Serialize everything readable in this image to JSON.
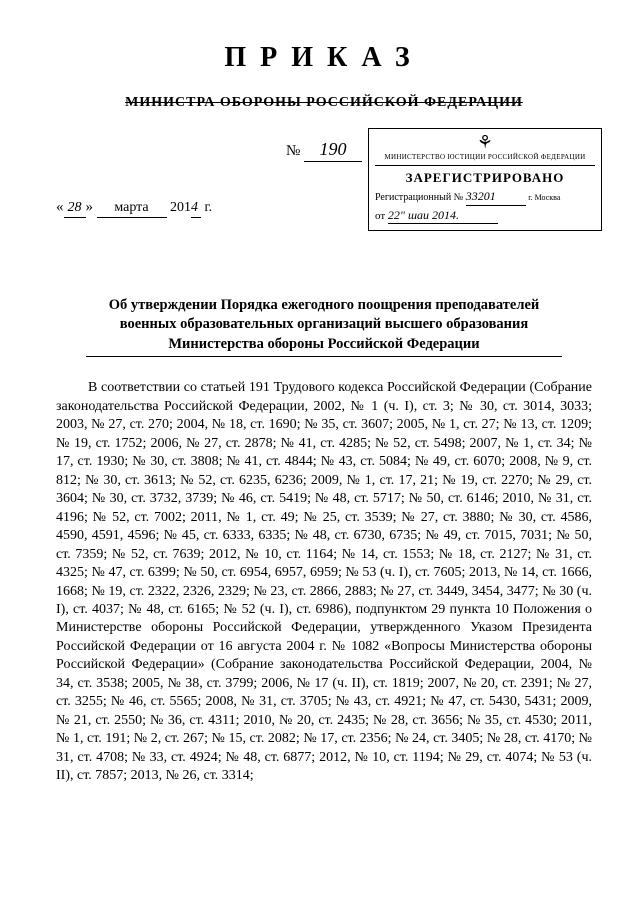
{
  "title": "ПРИКАЗ",
  "subtitle": "МИНИСТРА ОБОРОНЫ РОССИЙСКОЙ ФЕДЕРАЦИИ",
  "number_label": "№",
  "number_value": "190",
  "date": {
    "open_quote": "«",
    "day": "28",
    "close_quote": "»",
    "month": "марта",
    "year_prefix": "201",
    "year_suffix": "4",
    "year_label": "г."
  },
  "stamp": {
    "ministry": "МИНИСТЕРСТВО ЮСТИЦИИ РОССИЙСКОЙ ФЕДЕРАЦИИ",
    "registered": "ЗАРЕГИСТРИРОВАНО",
    "regnum_label": "Регистрационный №",
    "regnum_value": "33201",
    "city": "г. Москва",
    "from_label": "от",
    "from_value": "22\" шаи 2014."
  },
  "heading": "Об утверждении Порядка ежегодного поощрения преподавателей военных образовательных организаций высшего образования Министерства обороны Российской Федерации",
  "body": "В соответствии со статьей 191 Трудового кодекса Российской Федерации (Собрание законодательства Российской Федерации, 2002, № 1 (ч. I), ст. 3; № 30, ст. 3014, 3033; 2003, № 27, ст. 270; 2004, № 18, ст. 1690; № 35, ст. 3607; 2005, № 1, ст. 27; № 13, ст. 1209; № 19, ст. 1752; 2006, № 27, ст. 2878; № 41, ст. 4285; № 52, ст. 5498; 2007, № 1, ст. 34; № 17, ст. 1930; № 30, ст. 3808; № 41, ст. 4844; № 43, ст. 5084; № 49, ст. 6070; 2008, № 9, ст. 812; № 30, ст. 3613; № 52, ст. 6235, 6236; 2009, № 1, ст. 17, 21; № 19, ст. 2270; № 29, ст. 3604; № 30, ст. 3732, 3739; № 46, ст. 5419; № 48, ст. 5717; № 50, ст. 6146; 2010, № 31, ст. 4196; № 52, ст. 7002; 2011, № 1, ст. 49; № 25, ст. 3539; № 27, ст. 3880; № 30, ст. 4586, 4590, 4591, 4596; № 45, ст. 6333, 6335; № 48, ст. 6730, 6735; № 49, ст. 7015, 7031; № 50, ст. 7359; № 52, ст. 7639; 2012, № 10, ст. 1164; № 14, ст. 1553; № 18, ст. 2127; № 31, ст. 4325; № 47, ст. 6399; № 50, ст. 6954, 6957, 6959; № 53 (ч. I), ст. 7605; 2013, № 14, ст. 1666, 1668; № 19, ст. 2322, 2326, 2329; № 23, ст. 2866, 2883; № 27, ст. 3449, 3454, 3477; № 30 (ч. I), ст. 4037; № 48, ст. 6165; № 52 (ч. I), ст. 6986), подпунктом 29 пункта 10 Положения о Министерстве обороны Российской Федерации, утвержденного Указом Президента Российской Федерации от 16 августа 2004 г. № 1082 «Вопросы Министерства обороны Российской Федерации» (Собрание законодательства Российской Федерации, 2004, № 34, ст. 3538; 2005, № 38, ст. 3799; 2006, № 17 (ч. II), ст. 1819; 2007, № 20, ст. 2391; № 27, ст. 3255; № 46, ст. 5565; 2008, № 31, ст. 3705; № 43, ст. 4921; № 47, ст. 5430, 5431; 2009, № 21, ст. 2550; № 36, ст. 4311; 2010, № 20, ст. 2435; № 28, ст. 3656; № 35, ст. 4530; 2011, № 1, ст. 191; № 2, ст. 267; № 15, ст. 2082; № 17, ст. 2356; № 24, ст. 3405; № 28, ст. 4170; № 31, ст. 4708; № 33, ст. 4924; № 48, ст. 6877; 2012, № 10, ст. 1194; № 29, ст. 4074; № 53 (ч. II), ст. 7857; 2013, № 26, ст. 3314;"
}
